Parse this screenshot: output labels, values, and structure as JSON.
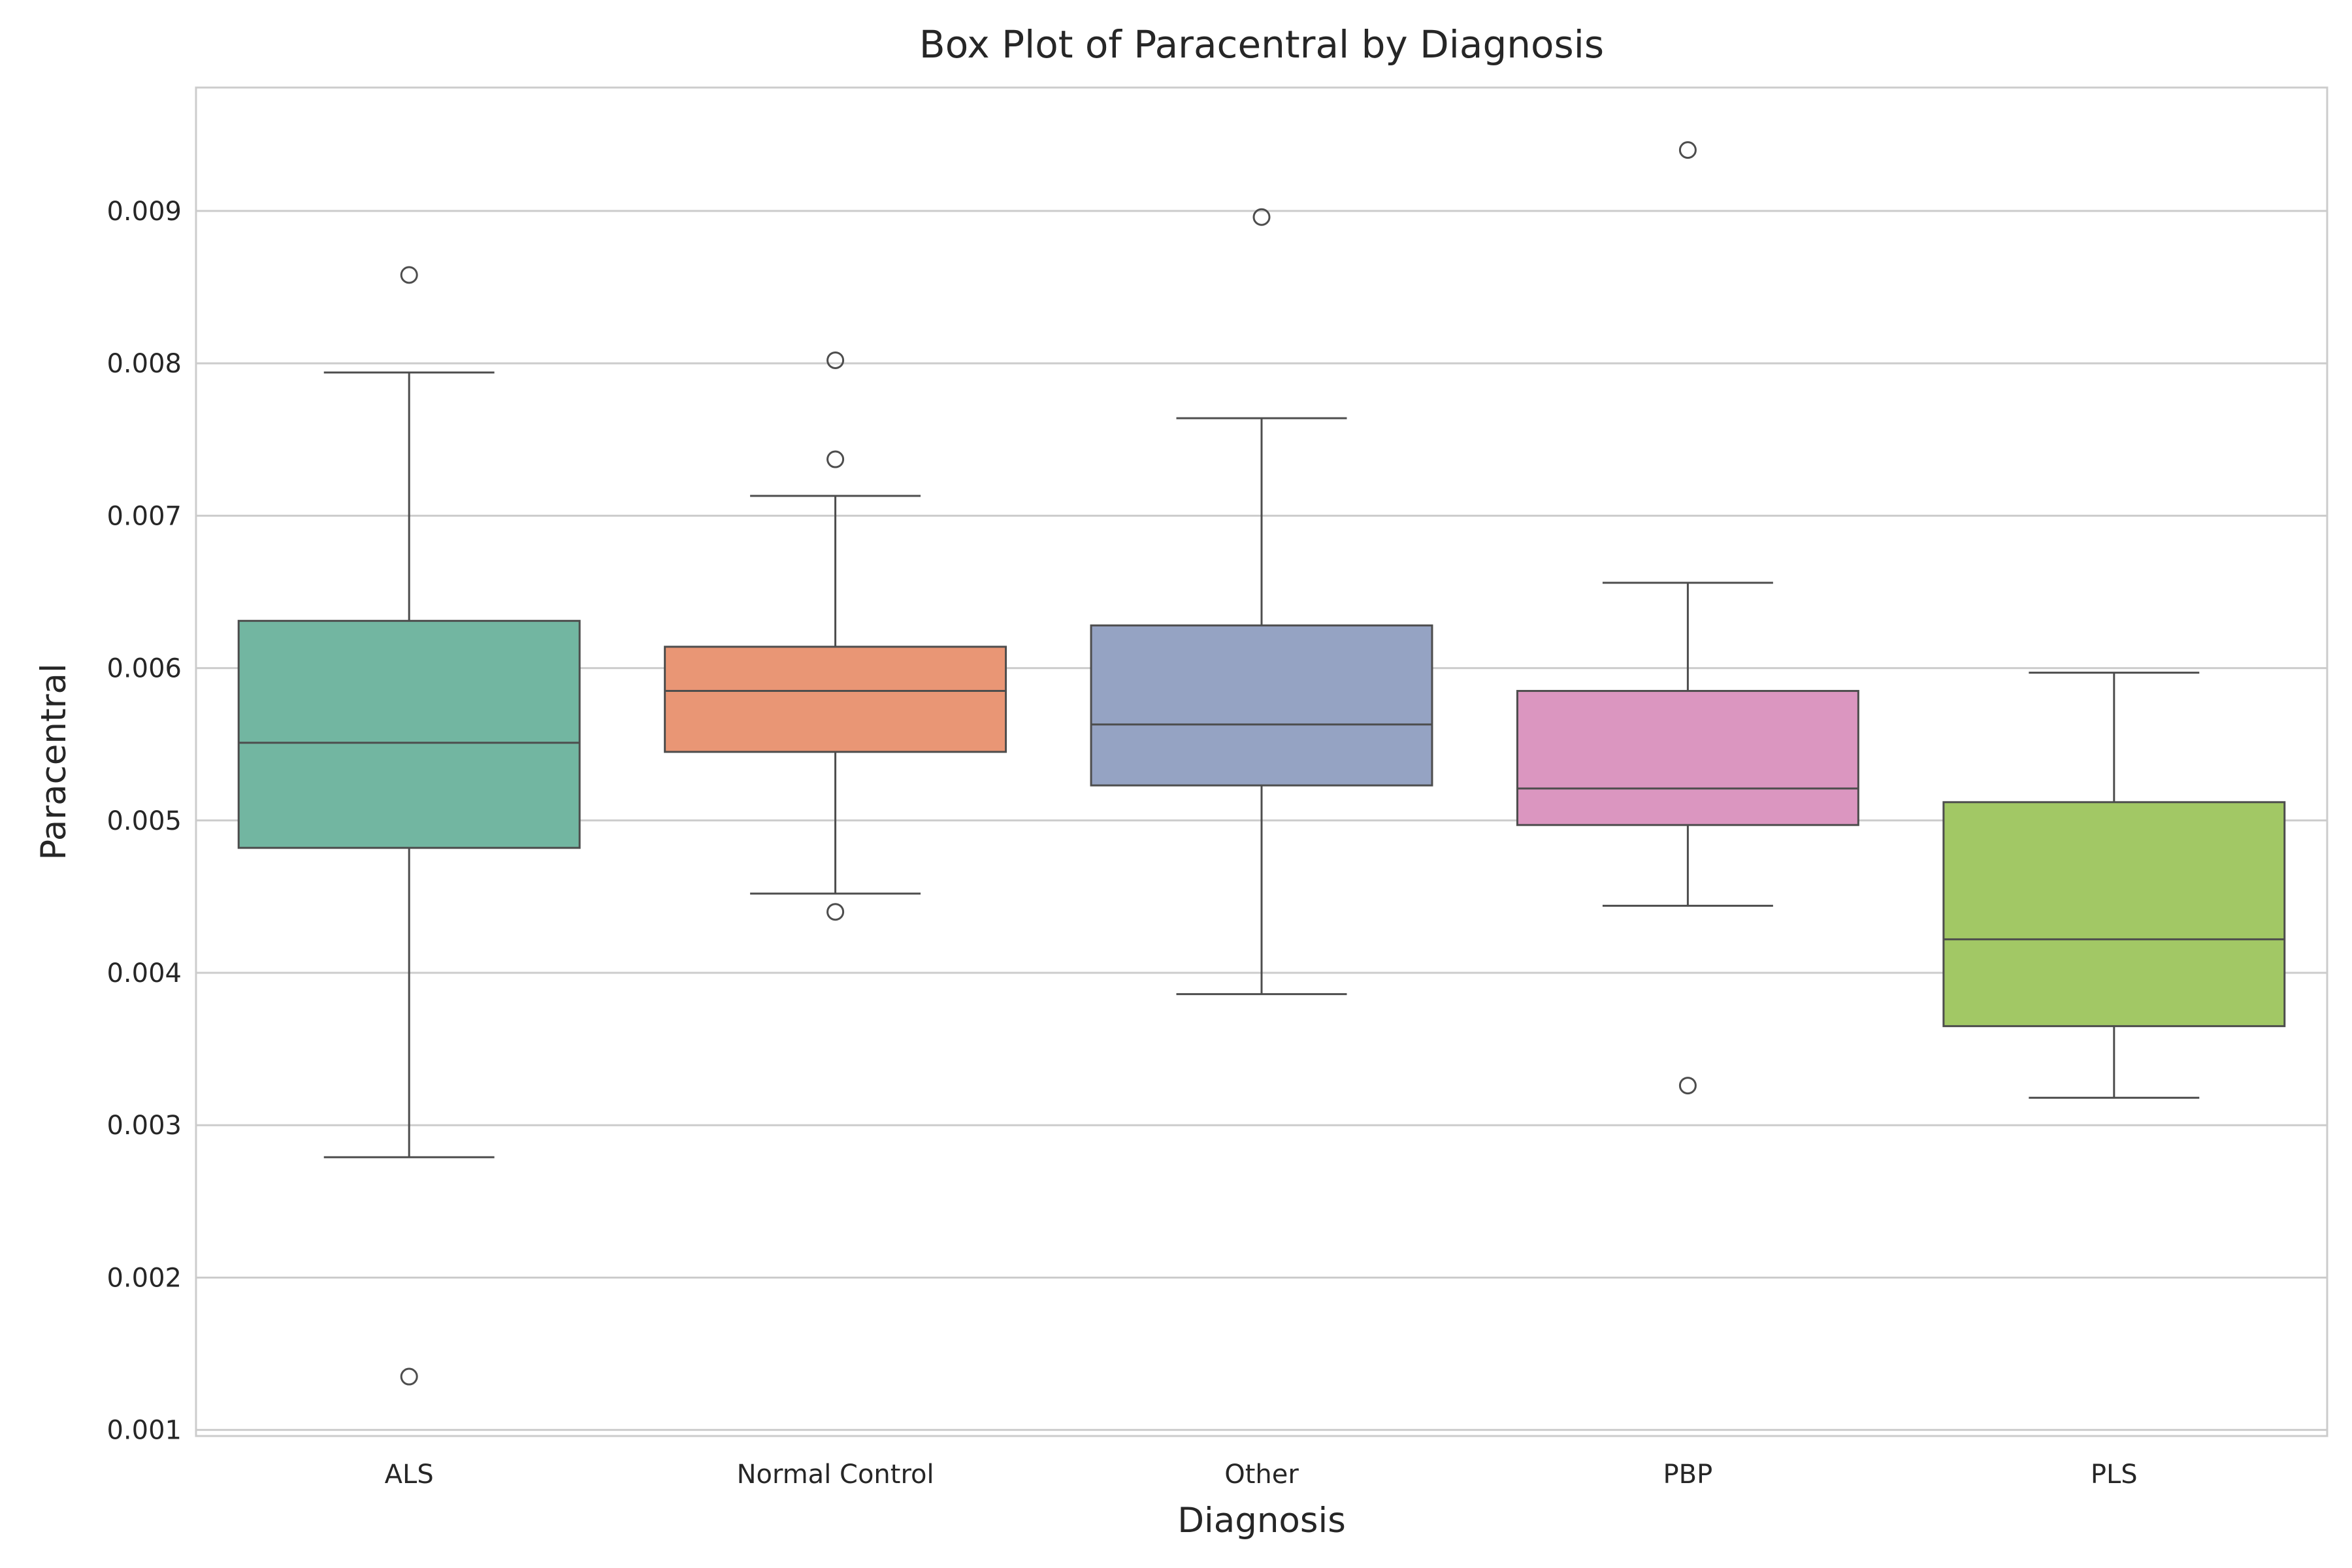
{
  "chart_data": {
    "type": "box",
    "title": "Box Plot of Paracentral by Diagnosis",
    "xlabel": "Diagnosis",
    "ylabel": "Paracentral",
    "ylim": [
      0.00096,
      0.00981
    ],
    "yticks": [
      0.001,
      0.002,
      0.003,
      0.004,
      0.005,
      0.006,
      0.007,
      0.008,
      0.009
    ],
    "ytick_labels": [
      "0.001",
      "0.002",
      "0.003",
      "0.004",
      "0.005",
      "0.006",
      "0.007",
      "0.008",
      "0.009"
    ],
    "grid": true,
    "categories": [
      "ALS",
      "Normal Control",
      "Other",
      "PBP",
      "PLS"
    ],
    "boxes": [
      {
        "category": "ALS",
        "whisker_low": 0.00279,
        "q1": 0.00482,
        "median": 0.00551,
        "q3": 0.00631,
        "whisker_high": 0.00794,
        "outliers": [
          0.00858,
          0.00135
        ],
        "color": "#72b6a1"
      },
      {
        "category": "Normal Control",
        "whisker_low": 0.00452,
        "q1": 0.00545,
        "median": 0.00585,
        "q3": 0.00614,
        "whisker_high": 0.00713,
        "outliers": [
          0.00802,
          0.00737,
          0.0044
        ],
        "color": "#e99675"
      },
      {
        "category": "Other",
        "whisker_low": 0.00386,
        "q1": 0.00523,
        "median": 0.00563,
        "q3": 0.00628,
        "whisker_high": 0.00764,
        "outliers": [
          0.00896
        ],
        "color": "#95a3c3"
      },
      {
        "category": "PBP",
        "whisker_low": 0.00444,
        "q1": 0.00497,
        "median": 0.00521,
        "q3": 0.00585,
        "whisker_high": 0.00656,
        "outliers": [
          0.0094,
          0.00326
        ],
        "color": "#db96c0"
      },
      {
        "category": "PLS",
        "whisker_low": 0.00318,
        "q1": 0.00365,
        "median": 0.00422,
        "q3": 0.00512,
        "whisker_high": 0.00597,
        "outliers": [],
        "color": "#a2c865"
      }
    ]
  }
}
